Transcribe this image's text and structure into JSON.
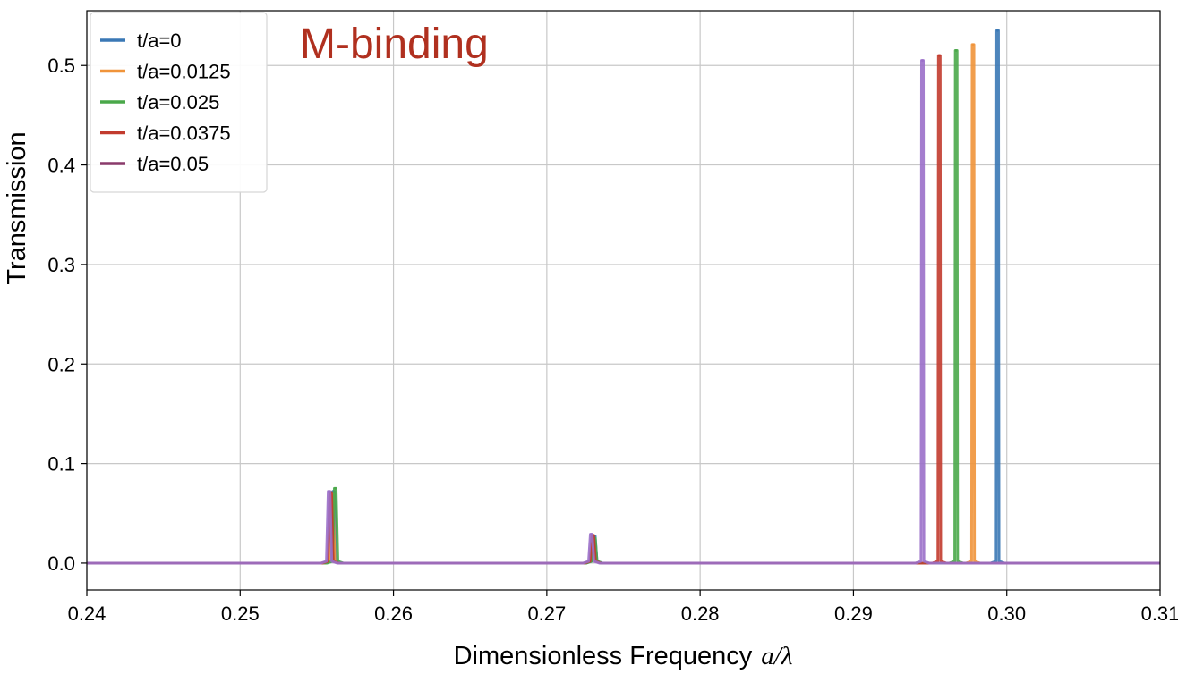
{
  "chart_data": {
    "type": "line",
    "title": "",
    "annotation": {
      "text": "M-binding",
      "color": "#b0301f"
    },
    "xlabel": "Dimensionless Frequency",
    "xlabel_symbol": "a/λ",
    "ylabel": "Transmission",
    "xlim": [
      0.24,
      0.31
    ],
    "ylim": [
      -0.027,
      0.555
    ],
    "xticks": [
      0.24,
      0.25,
      0.26,
      0.27,
      0.28,
      0.29,
      0.3,
      0.31
    ],
    "xtick_labels": [
      "0.24",
      "0.25",
      "0.26",
      "0.27",
      "0.28",
      "0.29",
      "0.30",
      "0.31"
    ],
    "yticks": [
      0.0,
      0.1,
      0.2,
      0.3,
      0.4,
      0.5
    ],
    "ytick_labels": [
      "0.0",
      "0.1",
      "0.2",
      "0.3",
      "0.4",
      "0.5"
    ],
    "grid": true,
    "legend_position": "top-left",
    "series": [
      {
        "name": "t/a=0",
        "color": "#3a78b5",
        "peaks": [
          {
            "x": 0.2561,
            "y": 0.072
          },
          {
            "x": 0.2731,
            "y": 0.027
          },
          {
            "x": 0.2994,
            "y": 0.535
          }
        ]
      },
      {
        "name": "t/a=0.0125",
        "color": "#f0943a",
        "peaks": [
          {
            "x": 0.256,
            "y": 0.07
          },
          {
            "x": 0.273,
            "y": 0.026
          },
          {
            "x": 0.2978,
            "y": 0.521
          }
        ]
      },
      {
        "name": "t/a=0.025",
        "color": "#4aa84a",
        "peaks": [
          {
            "x": 0.2562,
            "y": 0.075
          },
          {
            "x": 0.2731,
            "y": 0.025
          },
          {
            "x": 0.2967,
            "y": 0.515
          }
        ]
      },
      {
        "name": "t/a=0.0375",
        "color": "#c23b2e",
        "peaks": [
          {
            "x": 0.2559,
            "y": 0.071
          },
          {
            "x": 0.273,
            "y": 0.028
          },
          {
            "x": 0.2956,
            "y": 0.51
          }
        ]
      },
      {
        "name": "t/a=0.05",
        "color": "#8a3a6b",
        "line_color": "#9a6fc9",
        "peaks": [
          {
            "x": 0.2558,
            "y": 0.072
          },
          {
            "x": 0.2729,
            "y": 0.029
          },
          {
            "x": 0.2945,
            "y": 0.505
          }
        ]
      }
    ]
  }
}
